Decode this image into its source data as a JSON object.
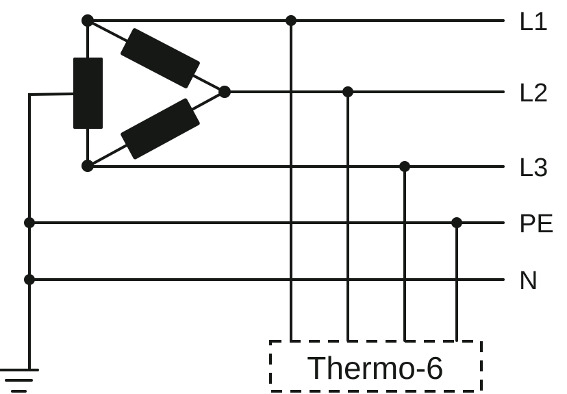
{
  "lines": {
    "l1": "L1",
    "l2": "L2",
    "l3": "L3",
    "pe": "PE",
    "n": "N"
  },
  "device": {
    "label": "Thermo-6"
  },
  "colors": {
    "ink": "#161816",
    "background": "#ffffff"
  }
}
